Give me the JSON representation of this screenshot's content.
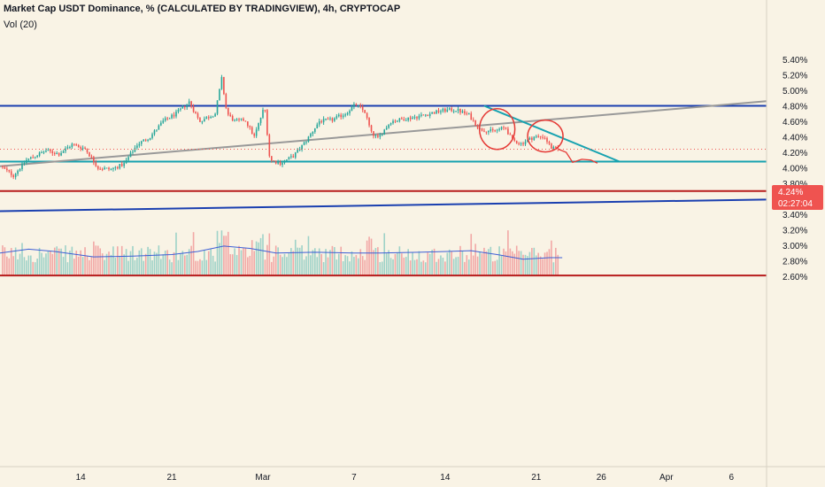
{
  "header": {
    "title": "Market Cap USDT Dominance, % (CALCULATED BY TRADINGVIEW), 4h, CRYPTOCAP",
    "volume_label": "Vol (20)"
  },
  "price_badge": {
    "value": "4.24%",
    "countdown": "02:27:04",
    "color": "#ef5350"
  },
  "colors": {
    "background": "#f9f3e5",
    "up": "#26a69a",
    "down": "#ef5350",
    "blue_line": "#1a3fb0",
    "teal_line": "#17a2b0",
    "grey_line": "#999999",
    "red_line": "#b71c1c",
    "annotation": "#e53935",
    "vol_ma": "#3d5fd6"
  },
  "chart_data": {
    "type": "candlestick",
    "title": "Market Cap USDT Dominance, % (CALCULATED BY TRADINGVIEW), 4h, CRYPTOCAP",
    "ylabel": "%",
    "ylim": [
      2.5,
      5.5
    ],
    "y_ticks": [
      "5.40%",
      "5.20%",
      "5.00%",
      "4.80%",
      "4.60%",
      "4.40%",
      "4.20%",
      "4.00%",
      "3.80%",
      "3.60%",
      "3.40%",
      "3.20%",
      "3.00%",
      "2.80%",
      "2.60%"
    ],
    "x_ticks": [
      {
        "label": "14",
        "day": 14
      },
      {
        "label": "21",
        "day": 21
      },
      {
        "label": "Mar",
        "day": 28
      },
      {
        "label": "7",
        "day": 35
      },
      {
        "label": "14",
        "day": 42
      },
      {
        "label": "21",
        "day": 49
      },
      {
        "label": "26",
        "day": 54
      },
      {
        "label": "Apr",
        "day": 59
      },
      {
        "label": "6",
        "day": 64
      }
    ],
    "x_range_days": [
      7.8,
      66.7
    ],
    "price_path": [
      [
        8.0,
        4.02
      ],
      [
        9.0,
        3.9
      ],
      [
        10.0,
        4.1
      ],
      [
        11.5,
        4.22
      ],
      [
        12.5,
        4.18
      ],
      [
        13.5,
        4.3
      ],
      [
        14.5,
        4.25
      ],
      [
        15.5,
        4.0
      ],
      [
        16.5,
        3.98
      ],
      [
        17.5,
        4.05
      ],
      [
        18.5,
        4.3
      ],
      [
        19.5,
        4.4
      ],
      [
        20.5,
        4.6
      ],
      [
        21.5,
        4.7
      ],
      [
        22.5,
        4.85
      ],
      [
        23.3,
        4.6
      ],
      [
        24.5,
        4.7
      ],
      [
        25.0,
        5.15
      ],
      [
        25.4,
        4.7
      ],
      [
        26.0,
        4.6
      ],
      [
        26.8,
        4.62
      ],
      [
        27.5,
        4.4
      ],
      [
        28.3,
        4.8
      ],
      [
        28.7,
        4.1
      ],
      [
        29.5,
        4.06
      ],
      [
        30.5,
        4.15
      ],
      [
        31.5,
        4.35
      ],
      [
        32.5,
        4.6
      ],
      [
        33.5,
        4.62
      ],
      [
        34.5,
        4.7
      ],
      [
        35.3,
        4.82
      ],
      [
        36.0,
        4.72
      ],
      [
        36.5,
        4.45
      ],
      [
        37.0,
        4.38
      ],
      [
        38.0,
        4.6
      ],
      [
        39.0,
        4.63
      ],
      [
        40.0,
        4.66
      ],
      [
        41.0,
        4.7
      ],
      [
        42.0,
        4.74
      ],
      [
        43.0,
        4.75
      ],
      [
        44.0,
        4.68
      ],
      [
        44.8,
        4.5
      ],
      [
        45.8,
        4.47
      ],
      [
        46.8,
        4.52
      ],
      [
        47.3,
        4.36
      ],
      [
        48.0,
        4.31
      ],
      [
        49.0,
        4.4
      ],
      [
        49.8,
        4.4
      ],
      [
        50.3,
        4.26
      ],
      [
        50.7,
        4.24
      ]
    ],
    "horizontal_lines": [
      {
        "price": 4.8,
        "color": "#1a3fb0"
      },
      {
        "price": 4.08,
        "color": "#17a2b0"
      },
      {
        "price": 3.7,
        "color": "#b71c1c"
      },
      {
        "price": 2.61,
        "color": "#b71c1c"
      }
    ],
    "trend_lines": [
      {
        "from": [
          7.8,
          4.02
        ],
        "to": [
          66.7,
          4.86
        ],
        "color": "#999999"
      },
      {
        "from": [
          7.8,
          3.44
        ],
        "to": [
          66.7,
          3.59
        ],
        "color": "#1a3fb0"
      },
      {
        "from": [
          45.0,
          4.8
        ],
        "to": [
          55.4,
          4.08
        ],
        "color": "#17a2b0"
      }
    ],
    "projection_path": [
      [
        50.7,
        4.24
      ],
      [
        51.3,
        4.2
      ],
      [
        51.8,
        4.07
      ],
      [
        52.5,
        4.11
      ],
      [
        53.2,
        4.1
      ],
      [
        53.7,
        4.06
      ]
    ],
    "volume_ma": [
      [
        7.8,
        2.9
      ],
      [
        10.0,
        2.95
      ],
      [
        12.0,
        2.92
      ],
      [
        15.0,
        2.85
      ],
      [
        18.0,
        2.86
      ],
      [
        21.0,
        2.88
      ],
      [
        23.0,
        2.92
      ],
      [
        25.0,
        2.99
      ],
      [
        27.0,
        2.96
      ],
      [
        29.0,
        2.9
      ],
      [
        32.0,
        2.91
      ],
      [
        35.0,
        2.9
      ],
      [
        37.0,
        2.9
      ],
      [
        40.0,
        2.91
      ],
      [
        44.0,
        2.93
      ],
      [
        46.0,
        2.88
      ],
      [
        48.0,
        2.82
      ],
      [
        50.0,
        2.84
      ],
      [
        51.0,
        2.84
      ]
    ]
  }
}
